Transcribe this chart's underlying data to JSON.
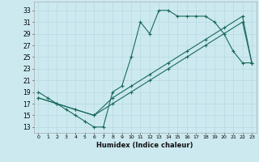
{
  "xlabel": "Humidex (Indice chaleur)",
  "bg_color": "#cce9f0",
  "line_color": "#1a6b5a",
  "grid_color": "#b8d8e2",
  "xlim": [
    -0.5,
    23.5
  ],
  "ylim": [
    12,
    34.5
  ],
  "xticks": [
    0,
    1,
    2,
    3,
    4,
    5,
    6,
    7,
    8,
    9,
    10,
    11,
    12,
    13,
    14,
    15,
    16,
    17,
    18,
    19,
    20,
    21,
    22,
    23
  ],
  "yticks": [
    13,
    15,
    17,
    19,
    21,
    23,
    25,
    27,
    29,
    31,
    33
  ],
  "line1_x": [
    0,
    1,
    2,
    3,
    4,
    5,
    6,
    7,
    8,
    9,
    10,
    11,
    12,
    13,
    14,
    15,
    16,
    17,
    18,
    19,
    20,
    21,
    22,
    23
  ],
  "line1_y": [
    19,
    18,
    17,
    16,
    15,
    14,
    13,
    13,
    19,
    20,
    25,
    31,
    29,
    33,
    33,
    32,
    32,
    32,
    32,
    31,
    29,
    26,
    24,
    24
  ],
  "line2_x": [
    0,
    2,
    4,
    6,
    8,
    10,
    12,
    14,
    16,
    18,
    20,
    22,
    23
  ],
  "line2_y": [
    18,
    17,
    16,
    15,
    18,
    20,
    22,
    24,
    26,
    28,
    30,
    32,
    24
  ],
  "line3_x": [
    0,
    2,
    4,
    6,
    8,
    10,
    12,
    14,
    16,
    18,
    20,
    22,
    23
  ],
  "line3_y": [
    18,
    17,
    16,
    15,
    17,
    19,
    21,
    23,
    25,
    27,
    29,
    31,
    24
  ]
}
